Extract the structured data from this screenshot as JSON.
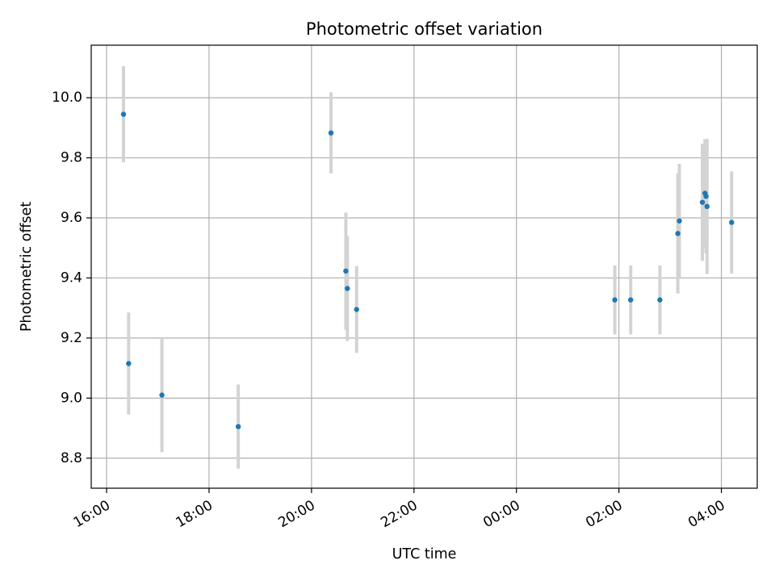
{
  "chart_data": {
    "type": "scatter",
    "title": "Photometric offset variation",
    "xlabel": "UTC time",
    "ylabel": "Photometric offset",
    "x_unit": "hours since 00:00 of first day",
    "xlim": [
      15.7,
      28.7
    ],
    "ylim": [
      8.7,
      10.175
    ],
    "grid": true,
    "x_ticks": [
      {
        "value": 16,
        "label": "16:00"
      },
      {
        "value": 18,
        "label": "18:00"
      },
      {
        "value": 20,
        "label": "20:00"
      },
      {
        "value": 22,
        "label": "22:00"
      },
      {
        "value": 24,
        "label": "00:00"
      },
      {
        "value": 26,
        "label": "02:00"
      },
      {
        "value": 28,
        "label": "04:00"
      }
    ],
    "y_ticks": [
      {
        "value": 8.8,
        "label": "8.8"
      },
      {
        "value": 9.0,
        "label": "9.0"
      },
      {
        "value": 9.2,
        "label": "9.2"
      },
      {
        "value": 9.4,
        "label": "9.4"
      },
      {
        "value": 9.6,
        "label": "9.6"
      },
      {
        "value": 9.8,
        "label": "9.8"
      },
      {
        "value": 10.0,
        "label": "10.0"
      }
    ],
    "marker_color": "#1f77b4",
    "errorbar_color": "#d3d3d3",
    "points": [
      {
        "x": 16.33,
        "y": 9.945,
        "err": 0.16
      },
      {
        "x": 16.43,
        "y": 9.115,
        "err": 0.17
      },
      {
        "x": 17.08,
        "y": 9.01,
        "err": 0.19
      },
      {
        "x": 18.57,
        "y": 8.905,
        "err": 0.14
      },
      {
        "x": 20.38,
        "y": 9.883,
        "err": 0.135
      },
      {
        "x": 20.67,
        "y": 9.423,
        "err": 0.195
      },
      {
        "x": 20.7,
        "y": 9.365,
        "err": 0.175
      },
      {
        "x": 20.88,
        "y": 9.295,
        "err": 0.145
      },
      {
        "x": 25.92,
        "y": 9.327,
        "err": 0.115
      },
      {
        "x": 26.23,
        "y": 9.327,
        "err": 0.115
      },
      {
        "x": 26.8,
        "y": 9.327,
        "err": 0.115
      },
      {
        "x": 27.15,
        "y": 9.548,
        "err": 0.2
      },
      {
        "x": 27.18,
        "y": 9.59,
        "err": 0.19
      },
      {
        "x": 27.63,
        "y": 9.652,
        "err": 0.195
      },
      {
        "x": 27.68,
        "y": 9.682,
        "err": 0.18
      },
      {
        "x": 27.7,
        "y": 9.672,
        "err": 0.19
      },
      {
        "x": 27.72,
        "y": 9.638,
        "err": 0.225
      },
      {
        "x": 28.2,
        "y": 9.585,
        "err": 0.17
      }
    ]
  }
}
